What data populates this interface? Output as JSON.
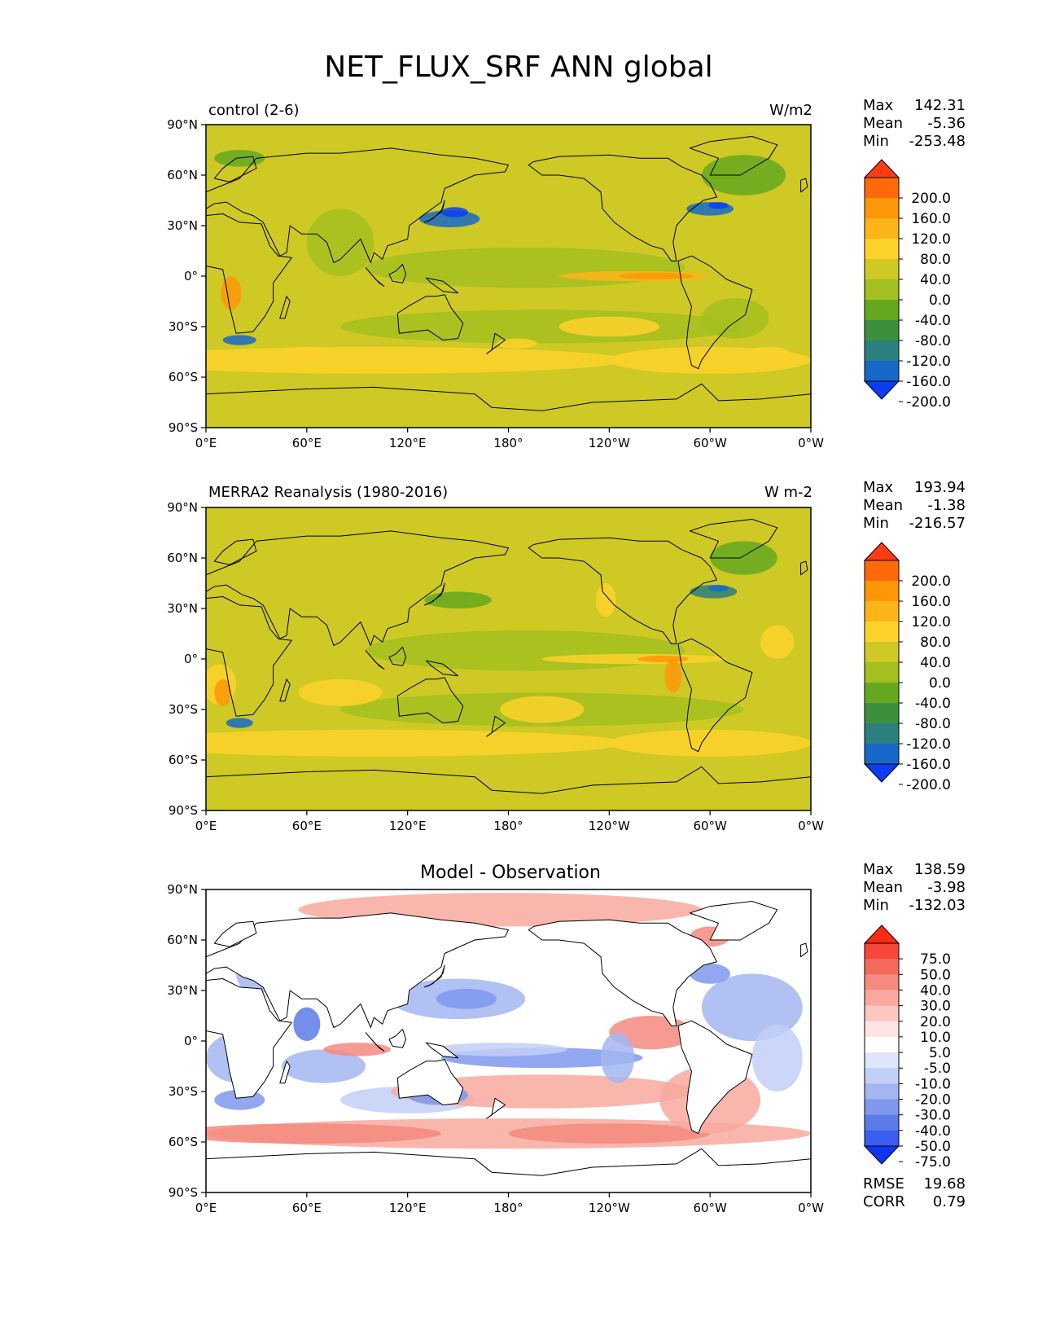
{
  "figure": {
    "title": "NET_FLUX_SRF ANN global"
  },
  "panels": [
    {
      "left_title": "control (2-6)",
      "center_title": "",
      "right_title": "W/m2",
      "stats": {
        "max_label": "Max",
        "max": "142.31",
        "mean_label": "Mean",
        "mean": "-5.36",
        "min_label": "Min",
        "min": "-253.48"
      }
    },
    {
      "left_title": "MERRA2 Reanalysis (1980-2016)",
      "center_title": "",
      "right_title": "W m-2",
      "stats": {
        "max_label": "Max",
        "max": "193.94",
        "mean_label": "Mean",
        "mean": "-1.38",
        "min_label": "Min",
        "min": "-216.57"
      }
    },
    {
      "left_title": "",
      "center_title": "Model - Observation",
      "right_title": "",
      "stats": {
        "max_label": "Max",
        "max": "138.59",
        "mean_label": "Mean",
        "mean": "-3.98",
        "min_label": "Min",
        "min": "-132.03"
      },
      "extra": {
        "rmse_label": "RMSE",
        "rmse": "19.68",
        "corr_label": "CORR",
        "corr": "0.79"
      }
    }
  ],
  "chart_data": [
    {
      "type": "heatmap",
      "title": "control (2-6)",
      "units": "W/m2",
      "projection": "PlateCarree",
      "central_longitude": 180,
      "x_ticks": [
        "0°E",
        "60°E",
        "120°E",
        "180°",
        "120°W",
        "60°W",
        "0°W"
      ],
      "y_ticks": [
        "90°N",
        "60°N",
        "30°N",
        "0°",
        "30°S",
        "60°S",
        "90°S"
      ],
      "colorbar": {
        "labels": [
          "200.0",
          "160.0",
          "120.0",
          "80.0",
          "40.0",
          "0.0",
          "-40.0",
          "-80.0",
          "-120.0",
          "-160.0",
          "-200.0"
        ],
        "colors": [
          "#ff3b14",
          "#fe6a08",
          "#fd9707",
          "#fdb41a",
          "#fdd22a",
          "#cec924",
          "#a3c020",
          "#65a820",
          "#3c8f3c",
          "#2b7f7f",
          "#1668c8",
          "#0a3df5"
        ]
      },
      "stats": {
        "max": 142.31,
        "mean": -5.36,
        "min": -253.48
      }
    },
    {
      "type": "heatmap",
      "title": "MERRA2 Reanalysis (1980-2016)",
      "units": "W m-2",
      "projection": "PlateCarree",
      "central_longitude": 180,
      "x_ticks": [
        "0°E",
        "60°E",
        "120°E",
        "180°",
        "120°W",
        "60°W",
        "0°W"
      ],
      "y_ticks": [
        "90°N",
        "60°N",
        "30°N",
        "0°",
        "30°S",
        "60°S",
        "90°S"
      ],
      "colorbar": {
        "labels": [
          "200.0",
          "160.0",
          "120.0",
          "80.0",
          "40.0",
          "0.0",
          "-40.0",
          "-80.0",
          "-120.0",
          "-160.0",
          "-200.0"
        ],
        "colors": [
          "#ff3b14",
          "#fe6a08",
          "#fd9707",
          "#fdb41a",
          "#fdd22a",
          "#cec924",
          "#a3c020",
          "#65a820",
          "#3c8f3c",
          "#2b7f7f",
          "#1668c8",
          "#0a3df5"
        ]
      },
      "stats": {
        "max": 193.94,
        "mean": -1.38,
        "min": -216.57
      }
    },
    {
      "type": "heatmap",
      "title": "Model - Observation",
      "projection": "PlateCarree",
      "central_longitude": 180,
      "x_ticks": [
        "0°E",
        "60°E",
        "120°E",
        "180°",
        "120°W",
        "60°W",
        "0°W"
      ],
      "y_ticks": [
        "90°N",
        "60°N",
        "30°N",
        "0°",
        "30°S",
        "60°S",
        "90°S"
      ],
      "colorbar": {
        "labels": [
          "75.0",
          "50.0",
          "40.0",
          "30.0",
          "20.0",
          "10.0",
          "5.0",
          "-5.0",
          "-10.0",
          "-20.0",
          "-30.0",
          "-40.0",
          "-50.0",
          "-75.0"
        ],
        "colors": [
          "#ff2a14",
          "#f5473a",
          "#f36a5c",
          "#f58a7e",
          "#f8a99f",
          "#fbc7c0",
          "#fde4e0",
          "#ffffff",
          "#dfe6fb",
          "#c2cff7",
          "#a3b6f2",
          "#7f98ed",
          "#5b7be8",
          "#3a5ef0",
          "#0f36f5"
        ]
      },
      "stats": {
        "max": 138.59,
        "mean": -3.98,
        "min": -132.03
      },
      "rmse": 19.68,
      "corr": 0.79
    }
  ]
}
